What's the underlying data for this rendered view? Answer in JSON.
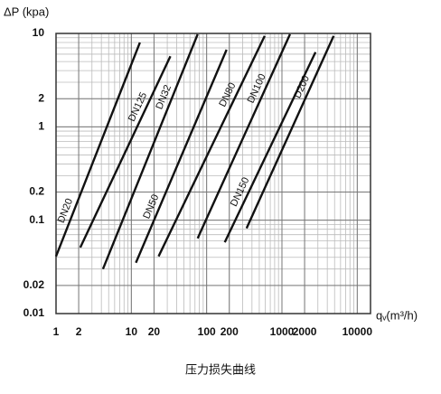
{
  "chart_data": {
    "type": "line",
    "y_label": "ΔP (kpa)",
    "x_label": "qᵥ(m³/h)",
    "caption": "压力损失曲线",
    "log_x": true,
    "log_y": true,
    "grid": true,
    "minor_grid": true,
    "xlim": [
      1,
      15000
    ],
    "ylim": [
      0.01,
      10
    ],
    "xticks": [
      1,
      2,
      10,
      20,
      100,
      200,
      1000,
      2000,
      10000
    ],
    "yticks": [
      0.01,
      0.02,
      0.1,
      0.2,
      1,
      2,
      10
    ],
    "series": [
      {
        "name": "DN20",
        "color": "#111111",
        "x": [
          1,
          13
        ],
        "values": [
          0.041,
          8.0
        ]
      },
      {
        "name": "DN125",
        "color": "#111111",
        "x": [
          2.1,
          33
        ],
        "values": [
          0.051,
          5.7
        ]
      },
      {
        "name": "DN32",
        "color": "#111111",
        "x": [
          4.2,
          76
        ],
        "values": [
          0.03,
          9.8
        ]
      },
      {
        "name": "DN50",
        "color": "#111111",
        "x": [
          11.5,
          184
        ],
        "values": [
          0.035,
          6.7
        ]
      },
      {
        "name": "DN80",
        "color": "#111111",
        "x": [
          23,
          590
        ],
        "values": [
          0.041,
          9.4
        ]
      },
      {
        "name": "DN100",
        "color": "#111111",
        "x": [
          76,
          1280
        ],
        "values": [
          0.064,
          9.8
        ]
      },
      {
        "name": "DN150",
        "color": "#111111",
        "x": [
          174,
          2790
        ],
        "values": [
          0.058,
          6.3
        ]
      },
      {
        "name": "D200",
        "color": "#111111",
        "x": [
          339,
          4860
        ],
        "values": [
          0.082,
          9.4
        ]
      }
    ]
  }
}
